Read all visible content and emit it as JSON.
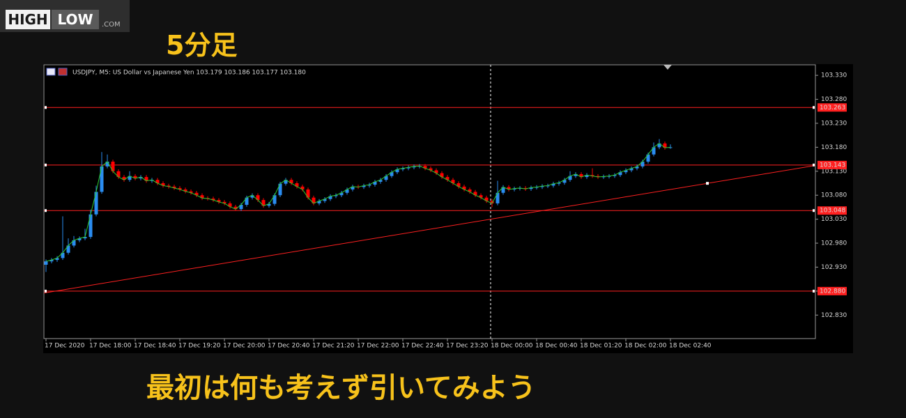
{
  "logo": {
    "high": "HIGH",
    "low": "LOW",
    "com": ".COM"
  },
  "heading": "5分足",
  "caption": "最初は何も考えず引いてみよう",
  "chart_data": {
    "type": "candlestick",
    "title": "USDJPY, M5:  US Dollar vs Japanese Yen  103.179 103.186 103.177 103.180",
    "bull_color": "#2a8cf0",
    "bear_color": "#ff0000",
    "line_color": "#2ecc2e",
    "level_color": "#ff2020",
    "ylim": [
      102.781,
      103.352
    ],
    "yticks": [
      {
        "value": 102.83,
        "label": "102.830"
      },
      {
        "value": 102.88,
        "label": "102.880"
      },
      {
        "value": 102.93,
        "label": "102.930"
      },
      {
        "value": 102.98,
        "label": "102.980"
      },
      {
        "value": 103.03,
        "label": "103.030"
      },
      {
        "value": 103.08,
        "label": "103.080"
      },
      {
        "value": 103.13,
        "label": "103.130"
      },
      {
        "value": 103.18,
        "label": "103.180"
      },
      {
        "value": 103.23,
        "label": "103.230"
      },
      {
        "value": 103.28,
        "label": "103.280"
      },
      {
        "value": 103.33,
        "label": "103.330"
      }
    ],
    "levels": [
      103.263,
      103.143,
      103.048,
      {
        "value": 102.88,
        "label": "102.880"
      }
    ],
    "trendline": [
      102.876,
      103.142
    ],
    "categories": [
      "17 Dec 2020",
      null,
      null,
      null,
      null,
      null,
      null,
      null,
      "17 Dec 18:00",
      null,
      null,
      null,
      null,
      null,
      null,
      null,
      "17 Dec 18:40",
      null,
      null,
      null,
      null,
      null,
      null,
      null,
      "17 Dec 19:20",
      null,
      null,
      null,
      null,
      null,
      null,
      null,
      "17 Dec 20:00",
      null,
      null,
      null,
      null,
      null,
      null,
      null,
      "17 Dec 20:40",
      null,
      null,
      null,
      null,
      null,
      null,
      null,
      "17 Dec 21:20",
      null,
      null,
      null,
      null,
      null,
      null,
      null,
      "17 Dec 22:00",
      null,
      null,
      null,
      null,
      null,
      null,
      null,
      "17 Dec 22:40",
      null,
      null,
      null,
      null,
      null,
      null,
      null,
      "17 Dec 23:20",
      null,
      null,
      null,
      null,
      null,
      null,
      null,
      "18 Dec 00:00",
      null,
      null,
      null,
      null,
      null,
      null,
      null,
      "18 Dec 00:40",
      null,
      null,
      null,
      null,
      null,
      null,
      null,
      "18 Dec 01:20",
      null,
      null,
      null,
      null,
      null,
      null,
      null,
      "18 Dec 02:00",
      null,
      null,
      null,
      null,
      null,
      null,
      null,
      "18 Dec 02:40"
    ],
    "open": [
      102.935,
      102.942,
      102.945,
      102.949,
      102.96,
      102.975,
      102.986,
      102.99,
      102.993,
      103.04,
      103.087,
      103.14,
      103.15,
      103.13,
      103.118,
      103.112,
      103.12,
      103.115,
      103.118,
      103.11,
      103.112,
      103.105,
      103.1,
      103.098,
      103.095,
      103.092,
      103.088,
      103.085,
      103.08,
      103.074,
      103.073,
      103.07,
      103.066,
      103.063,
      103.056,
      103.051,
      103.06,
      103.075,
      103.08,
      103.07,
      103.058,
      103.062,
      103.08,
      103.104,
      103.112,
      103.105,
      103.098,
      103.092,
      103.075,
      103.063,
      103.068,
      103.072,
      103.078,
      103.08,
      103.085,
      103.092,
      103.098,
      103.097,
      103.1,
      103.102,
      103.108,
      103.112,
      103.12,
      103.128,
      103.134,
      103.136,
      103.138,
      103.14,
      103.141,
      103.136,
      103.132,
      103.126,
      103.118,
      103.112,
      103.105,
      103.098,
      103.092,
      103.087,
      103.08,
      103.075,
      103.068,
      103.063,
      103.085,
      103.097,
      103.092,
      103.094,
      103.095,
      103.093,
      103.096,
      103.097,
      103.099,
      103.1,
      103.104,
      103.106,
      103.112,
      103.12,
      103.124,
      103.118,
      103.122,
      103.12,
      103.118,
      103.119,
      103.12,
      103.122,
      103.128,
      103.132,
      103.136,
      103.14,
      103.15,
      103.165,
      103.18,
      103.188,
      103.179
    ],
    "high": [
      102.946,
      102.949,
      102.953,
      103.036,
      102.99,
      102.995,
      102.994,
      103.01,
      103.05,
      103.1,
      103.17,
      103.165,
      103.154,
      103.134,
      103.122,
      103.13,
      103.124,
      103.122,
      103.122,
      103.116,
      103.116,
      103.109,
      103.104,
      103.102,
      103.099,
      103.096,
      103.092,
      103.089,
      103.084,
      103.078,
      103.077,
      103.074,
      103.07,
      103.067,
      103.06,
      103.064,
      103.079,
      103.084,
      103.084,
      103.074,
      103.066,
      103.084,
      103.108,
      103.116,
      103.116,
      103.109,
      103.102,
      103.096,
      103.079,
      103.072,
      103.076,
      103.082,
      103.084,
      103.089,
      103.096,
      103.102,
      103.102,
      103.104,
      103.106,
      103.112,
      103.116,
      103.124,
      103.132,
      103.138,
      103.14,
      103.142,
      103.144,
      103.145,
      103.145,
      103.14,
      103.136,
      103.13,
      103.122,
      103.116,
      103.109,
      103.102,
      103.096,
      103.091,
      103.084,
      103.079,
      103.072,
      103.11,
      103.101,
      103.101,
      103.098,
      103.099,
      103.099,
      103.1,
      103.101,
      103.103,
      103.104,
      103.108,
      103.11,
      103.116,
      103.13,
      103.128,
      103.128,
      103.126,
      103.136,
      103.124,
      103.123,
      103.124,
      103.126,
      103.132,
      103.136,
      103.14,
      103.144,
      103.154,
      103.169,
      103.19,
      103.197,
      103.192,
      103.186
    ],
    "low": [
      102.92,
      102.938,
      102.941,
      102.945,
      102.956,
      102.971,
      102.982,
      102.986,
      102.989,
      103.036,
      103.083,
      103.136,
      103.126,
      103.114,
      103.108,
      103.108,
      103.111,
      103.111,
      103.106,
      103.106,
      103.101,
      103.096,
      103.094,
      103.091,
      103.088,
      103.084,
      103.081,
      103.076,
      103.07,
      103.069,
      103.066,
      103.062,
      103.059,
      103.052,
      103.047,
      103.047,
      103.056,
      103.071,
      103.066,
      103.054,
      103.054,
      103.058,
      103.076,
      103.1,
      103.101,
      103.094,
      103.088,
      103.071,
      103.059,
      103.059,
      103.064,
      103.068,
      103.074,
      103.076,
      103.081,
      103.088,
      103.093,
      103.093,
      103.096,
      103.098,
      103.104,
      103.108,
      103.116,
      103.124,
      103.13,
      103.132,
      103.134,
      103.136,
      103.132,
      103.128,
      103.122,
      103.114,
      103.108,
      103.101,
      103.094,
      103.088,
      103.083,
      103.076,
      103.071,
      103.064,
      103.055,
      103.059,
      103.081,
      103.088,
      103.088,
      103.09,
      103.089,
      103.089,
      103.092,
      103.093,
      103.095,
      103.096,
      103.1,
      103.102,
      103.108,
      103.116,
      103.114,
      103.114,
      103.116,
      103.114,
      103.114,
      103.115,
      103.116,
      103.118,
      103.124,
      103.128,
      103.132,
      103.136,
      103.146,
      103.161,
      103.176,
      103.175,
      103.177
    ],
    "close": [
      102.942,
      102.945,
      102.949,
      102.96,
      102.975,
      102.986,
      102.99,
      102.993,
      103.04,
      103.087,
      103.14,
      103.15,
      103.13,
      103.118,
      103.112,
      103.12,
      103.115,
      103.118,
      103.11,
      103.112,
      103.105,
      103.1,
      103.098,
      103.095,
      103.092,
      103.088,
      103.085,
      103.08,
      103.074,
      103.073,
      103.07,
      103.066,
      103.063,
      103.056,
      103.051,
      103.06,
      103.075,
      103.08,
      103.07,
      103.058,
      103.062,
      103.08,
      103.104,
      103.112,
      103.105,
      103.098,
      103.092,
      103.075,
      103.063,
      103.068,
      103.072,
      103.078,
      103.08,
      103.085,
      103.092,
      103.098,
      103.097,
      103.1,
      103.102,
      103.108,
      103.112,
      103.12,
      103.128,
      103.134,
      103.136,
      103.138,
      103.14,
      103.141,
      103.136,
      103.132,
      103.126,
      103.118,
      103.112,
      103.105,
      103.098,
      103.092,
      103.087,
      103.08,
      103.075,
      103.068,
      103.063,
      103.085,
      103.097,
      103.092,
      103.094,
      103.095,
      103.093,
      103.096,
      103.097,
      103.099,
      103.1,
      103.104,
      103.106,
      103.112,
      103.12,
      103.124,
      103.118,
      103.122,
      103.12,
      103.118,
      103.119,
      103.12,
      103.122,
      103.128,
      103.132,
      103.136,
      103.14,
      103.15,
      103.165,
      103.18,
      103.188,
      103.179,
      103.18
    ]
  }
}
